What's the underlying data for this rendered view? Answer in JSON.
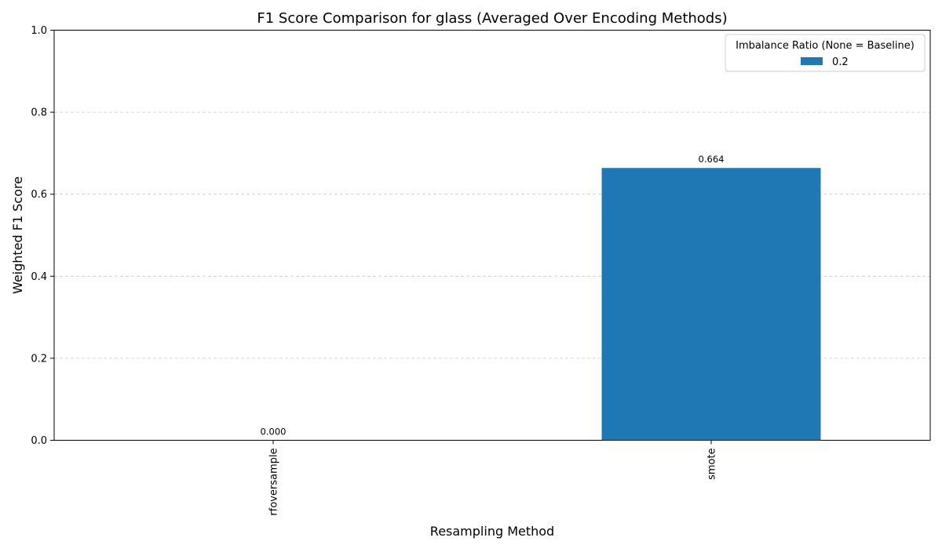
{
  "chart_data": {
    "type": "bar",
    "title": "F1 Score Comparison for glass (Averaged Over Encoding Methods)",
    "xlabel": "Resampling Method",
    "ylabel": "Weighted F1 Score",
    "categories": [
      "rfoversample",
      "smote"
    ],
    "series": [
      {
        "name": "0.2",
        "values": [
          0.0,
          0.664
        ],
        "color": "#1f77b4"
      }
    ],
    "data_labels": [
      "0.000",
      "0.664"
    ],
    "ylim": [
      0,
      1.0
    ],
    "yticks": [
      0.0,
      0.2,
      0.4,
      0.6,
      0.8,
      1.0
    ],
    "ytick_labels": [
      "0.0",
      "0.2",
      "0.4",
      "0.6",
      "0.8",
      "1.0"
    ],
    "grid": "y-dashed",
    "legend": {
      "title": "Imbalance Ratio (None = Baseline)",
      "placement": "top-right"
    },
    "x_tick_rotation": "vertical"
  }
}
